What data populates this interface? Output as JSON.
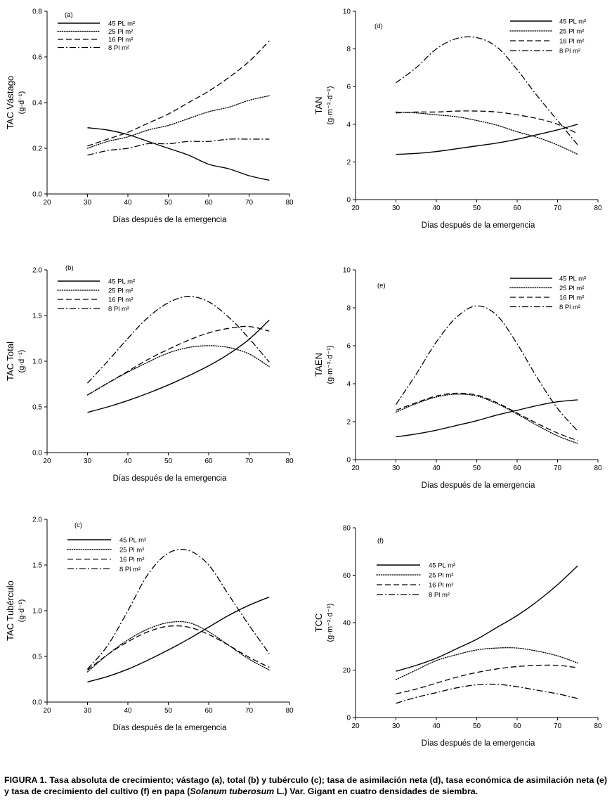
{
  "figure_caption": {
    "label": "FIGURA 1.",
    "text_before": "Tasa absoluta de crecimiento; vástago (a), total (b) y tubérculo (c); tasa de asimilación neta (d), tasa económica de asimilación neta (e) y tasa de crecimiento del cultivo (f) en papa (",
    "italic": "Solanum tuberosum",
    "text_after": " L.) Var. Gigant en cuatro densidades de siembra."
  },
  "style": {
    "line_color": "#000000",
    "background": "#ffffff"
  },
  "chart_data": [
    {
      "id": "a",
      "type": "line",
      "panel_label": "(a)",
      "ylabel_main": "TAC Vástago",
      "ylabel_units": "(g·d⁻¹)",
      "xlabel": "Días después de la emergencia",
      "xlim": [
        20,
        80
      ],
      "xticks": [
        20,
        30,
        40,
        50,
        60,
        70,
        80
      ],
      "ylim": [
        0,
        0.8
      ],
      "yticks": [
        "0.0",
        "0.2",
        "0.4",
        "0.6",
        "0.8"
      ],
      "legend_position": "top-left",
      "series": [
        {
          "name": "45 PL m²",
          "style": "solid",
          "x": [
            30,
            35,
            40,
            45,
            50,
            55,
            60,
            65,
            70,
            75
          ],
          "y": [
            0.29,
            0.28,
            0.26,
            0.23,
            0.2,
            0.17,
            0.13,
            0.11,
            0.08,
            0.06
          ]
        },
        {
          "name": "25 Pl m²",
          "style": "dotted",
          "x": [
            30,
            35,
            40,
            45,
            50,
            55,
            60,
            65,
            70,
            75
          ],
          "y": [
            0.2,
            0.23,
            0.25,
            0.28,
            0.3,
            0.33,
            0.36,
            0.38,
            0.41,
            0.43
          ]
        },
        {
          "name": "16 Pl m²",
          "style": "dashed",
          "x": [
            30,
            35,
            40,
            45,
            50,
            55,
            60,
            65,
            70,
            75
          ],
          "y": [
            0.21,
            0.24,
            0.27,
            0.31,
            0.35,
            0.4,
            0.45,
            0.51,
            0.58,
            0.67
          ]
        },
        {
          "name": "8 Pl m²",
          "style": "dashdot",
          "x": [
            30,
            35,
            40,
            45,
            50,
            55,
            60,
            65,
            70,
            75
          ],
          "y": [
            0.17,
            0.19,
            0.2,
            0.22,
            0.22,
            0.23,
            0.23,
            0.24,
            0.24,
            0.24
          ]
        }
      ]
    },
    {
      "id": "d",
      "type": "line",
      "panel_label": "(d)",
      "ylabel_main": "TAN",
      "ylabel_units": "(g·m⁻²·d⁻¹)",
      "xlabel": "Días después de la emergencia",
      "xlim": [
        20,
        80
      ],
      "xticks": [
        20,
        30,
        40,
        50,
        60,
        70,
        80
      ],
      "ylim": [
        0,
        10
      ],
      "yticks": [
        "0",
        "2",
        "4",
        "6",
        "8",
        "10"
      ],
      "legend_position": "top-right",
      "series": [
        {
          "name": "45 PL m²",
          "style": "solid",
          "x": [
            30,
            35,
            40,
            45,
            50,
            55,
            60,
            65,
            70,
            75
          ],
          "y": [
            2.4,
            2.45,
            2.55,
            2.7,
            2.85,
            3.0,
            3.2,
            3.45,
            3.7,
            4.0
          ]
        },
        {
          "name": "25 Pl m²",
          "style": "dotted",
          "x": [
            30,
            35,
            40,
            45,
            50,
            55,
            60,
            65,
            70,
            75
          ],
          "y": [
            4.65,
            4.6,
            4.5,
            4.4,
            4.2,
            3.95,
            3.6,
            3.3,
            2.9,
            2.4
          ]
        },
        {
          "name": "16 Pl m²",
          "style": "dashed",
          "x": [
            30,
            35,
            40,
            45,
            50,
            55,
            60,
            65,
            70,
            75
          ],
          "y": [
            4.6,
            4.65,
            4.65,
            4.7,
            4.7,
            4.65,
            4.5,
            4.3,
            4.0,
            3.5
          ]
        },
        {
          "name": "8 Pl m²",
          "style": "dashdot",
          "x": [
            30,
            35,
            40,
            45,
            50,
            55,
            60,
            65,
            70,
            75
          ],
          "y": [
            6.2,
            7.0,
            8.0,
            8.55,
            8.6,
            8.1,
            6.9,
            5.5,
            4.2,
            2.9
          ]
        }
      ]
    },
    {
      "id": "b",
      "type": "line",
      "panel_label": "(b)",
      "ylabel_main": "TAC Total",
      "ylabel_units": "(g·d⁻¹)",
      "xlabel": "Días después de la emergencia",
      "xlim": [
        20,
        80
      ],
      "xticks": [
        20,
        30,
        40,
        50,
        60,
        70,
        80
      ],
      "ylim": [
        0,
        2.0
      ],
      "yticks": [
        "0.0",
        "0.5",
        "1.0",
        "1.5",
        "2.0"
      ],
      "legend_position": "top-left",
      "series": [
        {
          "name": "45 PL m²",
          "style": "solid",
          "x": [
            30,
            35,
            40,
            45,
            50,
            55,
            60,
            65,
            70,
            75
          ],
          "y": [
            0.44,
            0.5,
            0.57,
            0.65,
            0.74,
            0.84,
            0.95,
            1.08,
            1.24,
            1.45
          ]
        },
        {
          "name": "25 Pl m²",
          "style": "dotted",
          "x": [
            30,
            35,
            40,
            45,
            50,
            55,
            60,
            65,
            70,
            75
          ],
          "y": [
            0.63,
            0.76,
            0.88,
            0.99,
            1.09,
            1.15,
            1.17,
            1.15,
            1.08,
            0.94
          ]
        },
        {
          "name": "16 Pl m²",
          "style": "dashed",
          "x": [
            30,
            35,
            40,
            45,
            50,
            55,
            60,
            65,
            70,
            75
          ],
          "y": [
            0.63,
            0.76,
            0.89,
            1.02,
            1.13,
            1.23,
            1.31,
            1.36,
            1.38,
            1.33
          ]
        },
        {
          "name": "8 Pl m²",
          "style": "dashdot",
          "x": [
            30,
            35,
            40,
            45,
            50,
            55,
            60,
            65,
            70,
            75
          ],
          "y": [
            0.76,
            1.0,
            1.25,
            1.48,
            1.64,
            1.71,
            1.65,
            1.48,
            1.25,
            0.99
          ]
        }
      ]
    },
    {
      "id": "e",
      "type": "line",
      "panel_label": "(e)",
      "ylabel_main": "TAEN",
      "ylabel_units": "(g·m⁻²·d⁻¹)",
      "xlabel": "Días después de la emergencia",
      "xlim": [
        20,
        80
      ],
      "xticks": [
        20,
        30,
        40,
        50,
        60,
        70,
        80
      ],
      "ylim": [
        0,
        10
      ],
      "yticks": [
        "0",
        "2",
        "4",
        "6",
        "8",
        "10"
      ],
      "legend_position": "top-right",
      "series": [
        {
          "name": "45 PL m²",
          "style": "solid",
          "x": [
            30,
            35,
            40,
            45,
            50,
            55,
            60,
            65,
            70,
            75
          ],
          "y": [
            1.2,
            1.35,
            1.55,
            1.8,
            2.05,
            2.35,
            2.6,
            2.85,
            3.05,
            3.15
          ]
        },
        {
          "name": "25 Pl m²",
          "style": "dotted",
          "x": [
            30,
            35,
            40,
            45,
            50,
            55,
            60,
            65,
            70,
            75
          ],
          "y": [
            2.5,
            2.95,
            3.3,
            3.45,
            3.35,
            2.95,
            2.4,
            1.8,
            1.25,
            0.85
          ]
        },
        {
          "name": "16 Pl m²",
          "style": "dashed",
          "x": [
            30,
            35,
            40,
            45,
            50,
            55,
            60,
            65,
            70,
            75
          ],
          "y": [
            2.6,
            3.0,
            3.35,
            3.5,
            3.4,
            3.0,
            2.45,
            1.9,
            1.4,
            1.0
          ]
        },
        {
          "name": "8 Pl m²",
          "style": "dashdot",
          "x": [
            30,
            35,
            40,
            45,
            50,
            55,
            60,
            65,
            70,
            75
          ],
          "y": [
            2.9,
            4.5,
            6.2,
            7.5,
            8.1,
            7.6,
            6.1,
            4.3,
            2.7,
            1.5
          ]
        }
      ]
    },
    {
      "id": "c",
      "type": "line",
      "panel_label": "(c)",
      "ylabel_main": "TAC Tubérculo",
      "ylabel_units": "(g·d⁻¹)",
      "xlabel": "Días después de la emergencia",
      "xlim": [
        20,
        80
      ],
      "xticks": [
        20,
        30,
        40,
        50,
        60,
        70,
        80
      ],
      "ylim": [
        0,
        2.0
      ],
      "yticks": [
        "0.0",
        "0.5",
        "1.0",
        "1.5",
        "2.0"
      ],
      "legend_position": "top-left",
      "series": [
        {
          "name": "45 PL m²",
          "style": "solid",
          "x": [
            30,
            35,
            40,
            45,
            50,
            55,
            60,
            65,
            70,
            75
          ],
          "y": [
            0.22,
            0.28,
            0.36,
            0.46,
            0.57,
            0.69,
            0.82,
            0.95,
            1.06,
            1.15
          ]
        },
        {
          "name": "25 Pl m²",
          "style": "dotted",
          "x": [
            30,
            35,
            40,
            45,
            50,
            55,
            60,
            65,
            70,
            75
          ],
          "y": [
            0.33,
            0.52,
            0.68,
            0.8,
            0.87,
            0.87,
            0.77,
            0.62,
            0.47,
            0.35
          ]
        },
        {
          "name": "16 Pl m²",
          "style": "dashed",
          "x": [
            30,
            35,
            40,
            45,
            50,
            55,
            60,
            65,
            70,
            75
          ],
          "y": [
            0.35,
            0.52,
            0.66,
            0.77,
            0.83,
            0.82,
            0.74,
            0.62,
            0.49,
            0.38
          ]
        },
        {
          "name": "8 Pl m²",
          "style": "dashdot",
          "x": [
            30,
            35,
            40,
            45,
            50,
            55,
            60,
            65,
            70,
            75
          ],
          "y": [
            0.36,
            0.62,
            1.0,
            1.4,
            1.63,
            1.66,
            1.5,
            1.17,
            0.84,
            0.53
          ]
        }
      ]
    },
    {
      "id": "f",
      "type": "line",
      "panel_label": "(f)",
      "ylabel_main": "TCC",
      "ylabel_units": "(g·m⁻²·d⁻¹)",
      "xlabel": "Días después de la emergencia",
      "xlim": [
        20,
        80
      ],
      "xticks": [
        20,
        30,
        40,
        50,
        60,
        70,
        80
      ],
      "ylim": [
        0,
        80
      ],
      "yticks": [
        "0",
        "20",
        "40",
        "60",
        "80"
      ],
      "legend_position": "top-left",
      "series": [
        {
          "name": "45 PL m²",
          "style": "solid",
          "x": [
            30,
            35,
            40,
            45,
            50,
            55,
            60,
            65,
            70,
            75
          ],
          "y": [
            19.5,
            22,
            25,
            29,
            33,
            38,
            43,
            49,
            56,
            64
          ]
        },
        {
          "name": "25 Pl m²",
          "style": "dotted",
          "x": [
            30,
            35,
            40,
            45,
            50,
            55,
            60,
            65,
            70,
            75
          ],
          "y": [
            16,
            20,
            24,
            26.5,
            28.5,
            29.3,
            29.3,
            28,
            26,
            23
          ]
        },
        {
          "name": "16 Pl m²",
          "style": "dashed",
          "x": [
            30,
            35,
            40,
            45,
            50,
            55,
            60,
            65,
            70,
            75
          ],
          "y": [
            10,
            12,
            14.5,
            17,
            19,
            20.5,
            21.5,
            22,
            22,
            21
          ]
        },
        {
          "name": "8 Pl m²",
          "style": "dashdot",
          "x": [
            30,
            35,
            40,
            45,
            50,
            55,
            60,
            65,
            70,
            75
          ],
          "y": [
            6,
            8.5,
            10.5,
            12.5,
            13.8,
            14,
            13,
            11.5,
            10,
            8
          ]
        }
      ]
    }
  ]
}
